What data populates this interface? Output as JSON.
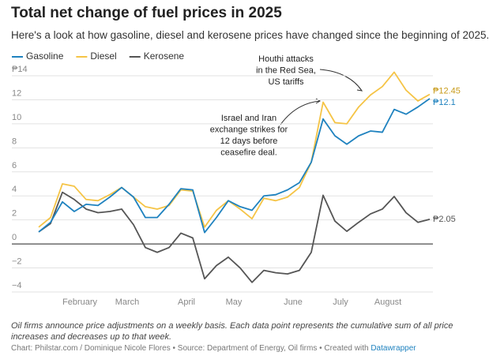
{
  "chart_data": {
    "type": "line",
    "title": "Total net change of fuel prices in 2025",
    "subtitle": "Here's a look at how gasoline, diesel and kerosene prices have changed since the beginning of 2025.",
    "note": "Oil firms announce price adjustments on a weekly basis. Each data point represents the cumulative sum of all price increases and decreases up to that week.",
    "source": "Chart: Philstar.com / Dominique Nicole Flores • Source: Department of Energy, Oil firms • Created with",
    "credit": "Datawrapper",
    "categories": [
      null,
      null,
      null,
      "February",
      null,
      null,
      null,
      "March",
      null,
      null,
      null,
      null,
      "April",
      null,
      null,
      null,
      "May",
      null,
      null,
      null,
      null,
      "June",
      null,
      null,
      null,
      "July",
      null,
      null,
      null,
      "August",
      null,
      null,
      null,
      null
    ],
    "series": [
      {
        "name": "Gasoline",
        "color": "#1f82bf",
        "values": [
          1.0,
          1.8,
          3.5,
          2.7,
          3.3,
          3.2,
          3.9,
          4.7,
          3.9,
          2.2,
          2.2,
          3.3,
          4.6,
          4.5,
          0.95,
          2.2,
          3.6,
          3.1,
          2.8,
          4.0,
          4.1,
          4.5,
          5.1,
          6.8,
          10.4,
          9.0,
          8.3,
          9.0,
          9.4,
          9.3,
          11.2,
          10.8,
          11.4,
          12.1
        ],
        "value_labels": [
          null,
          null,
          null,
          null,
          null,
          null,
          null,
          null,
          null,
          null,
          null,
          null,
          null,
          null,
          null,
          null,
          null,
          null,
          null,
          null,
          null,
          null,
          null,
          null,
          null,
          null,
          null,
          null,
          null,
          null,
          null,
          null,
          null,
          "₱12.1"
        ]
      },
      {
        "name": "Diesel",
        "color": "#f5c446",
        "values": [
          1.4,
          2.2,
          5.0,
          4.8,
          3.7,
          3.6,
          4.1,
          4.7,
          3.9,
          3.1,
          2.9,
          3.2,
          4.5,
          4.4,
          1.4,
          2.8,
          3.6,
          2.9,
          2.1,
          3.8,
          3.6,
          3.9,
          4.7,
          6.8,
          11.8,
          10.1,
          10.0,
          11.4,
          12.4,
          13.1,
          14.3,
          12.8,
          11.9,
          12.45
        ],
        "value_labels": [
          null,
          null,
          null,
          null,
          null,
          null,
          null,
          null,
          null,
          null,
          null,
          null,
          null,
          null,
          null,
          null,
          null,
          null,
          null,
          null,
          null,
          null,
          null,
          null,
          null,
          null,
          null,
          null,
          null,
          null,
          null,
          null,
          null,
          "₱12.45"
        ]
      },
      {
        "name": "Kerosene",
        "color": "#555555",
        "values": [
          1.0,
          1.7,
          4.3,
          3.7,
          2.9,
          2.6,
          2.7,
          2.9,
          1.6,
          -0.3,
          -0.7,
          -0.3,
          0.9,
          0.5,
          -2.9,
          -1.8,
          -1.1,
          -2.0,
          -3.2,
          -2.2,
          -2.4,
          -2.5,
          -2.2,
          -0.7,
          4.05,
          1.9,
          1.05,
          1.8,
          2.5,
          2.9,
          3.95,
          2.6,
          1.8,
          2.05
        ],
        "value_labels": [
          null,
          null,
          null,
          null,
          null,
          null,
          null,
          null,
          null,
          null,
          null,
          null,
          null,
          null,
          null,
          null,
          null,
          null,
          null,
          null,
          null,
          null,
          null,
          null,
          null,
          null,
          null,
          null,
          null,
          null,
          null,
          null,
          null,
          "₱2.05"
        ]
      }
    ],
    "ylim": [
      -4,
      14
    ],
    "yticks": [
      {
        "value": -4,
        "label": "−4"
      },
      {
        "value": -2,
        "label": "−2"
      },
      0,
      2,
      4,
      6,
      8,
      10,
      12,
      {
        "value": 14,
        "label": "₱14"
      }
    ],
    "grid": true,
    "annotations": [
      {
        "lines": [
          "Houthi attacks",
          "in the Red Sea,",
          "US tariffs"
        ]
      },
      {
        "lines": [
          "Israel and Iran",
          "exchange strikes for",
          "12 days before",
          "ceasefire deal."
        ]
      }
    ]
  }
}
